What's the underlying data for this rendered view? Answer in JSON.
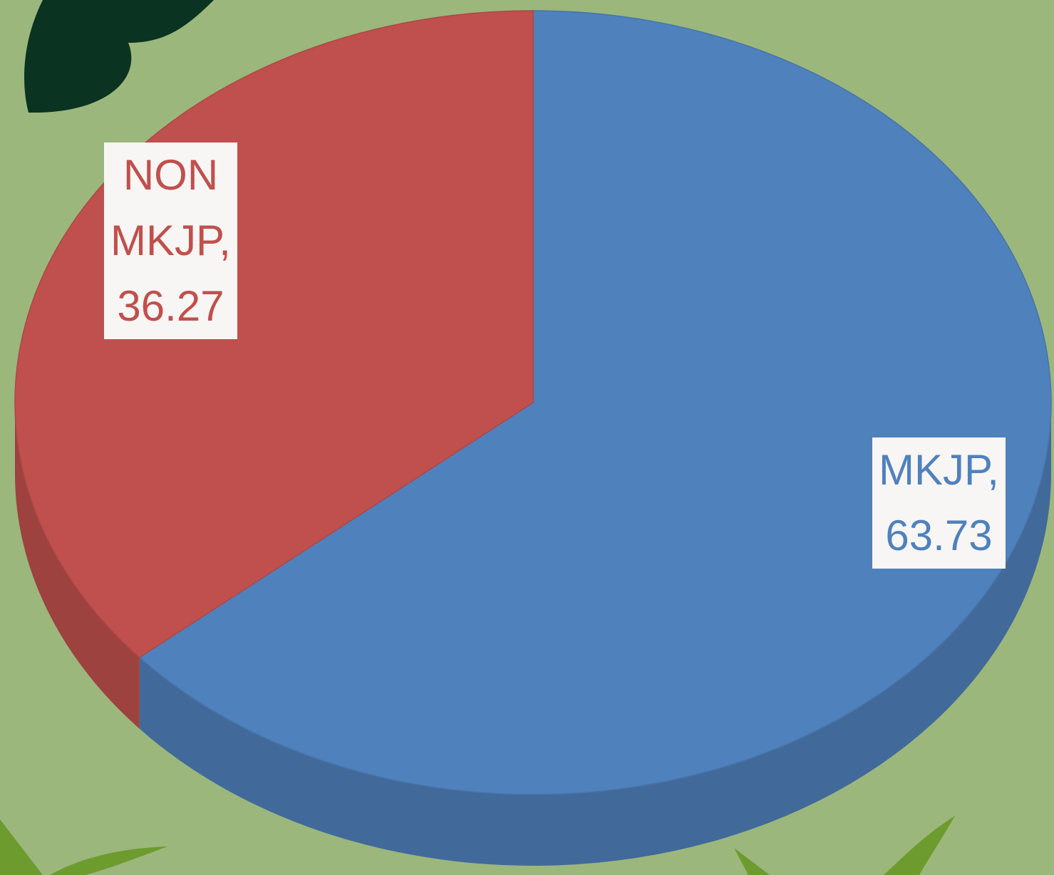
{
  "chart_data": {
    "type": "pie",
    "values": [
      63.73,
      36.27
    ],
    "value_labels": [
      "MKJP, 63.73",
      "NON MKJP, 36.27"
    ],
    "colors": [
      "#4f81bd",
      "#c0504d"
    ]
  }
}
